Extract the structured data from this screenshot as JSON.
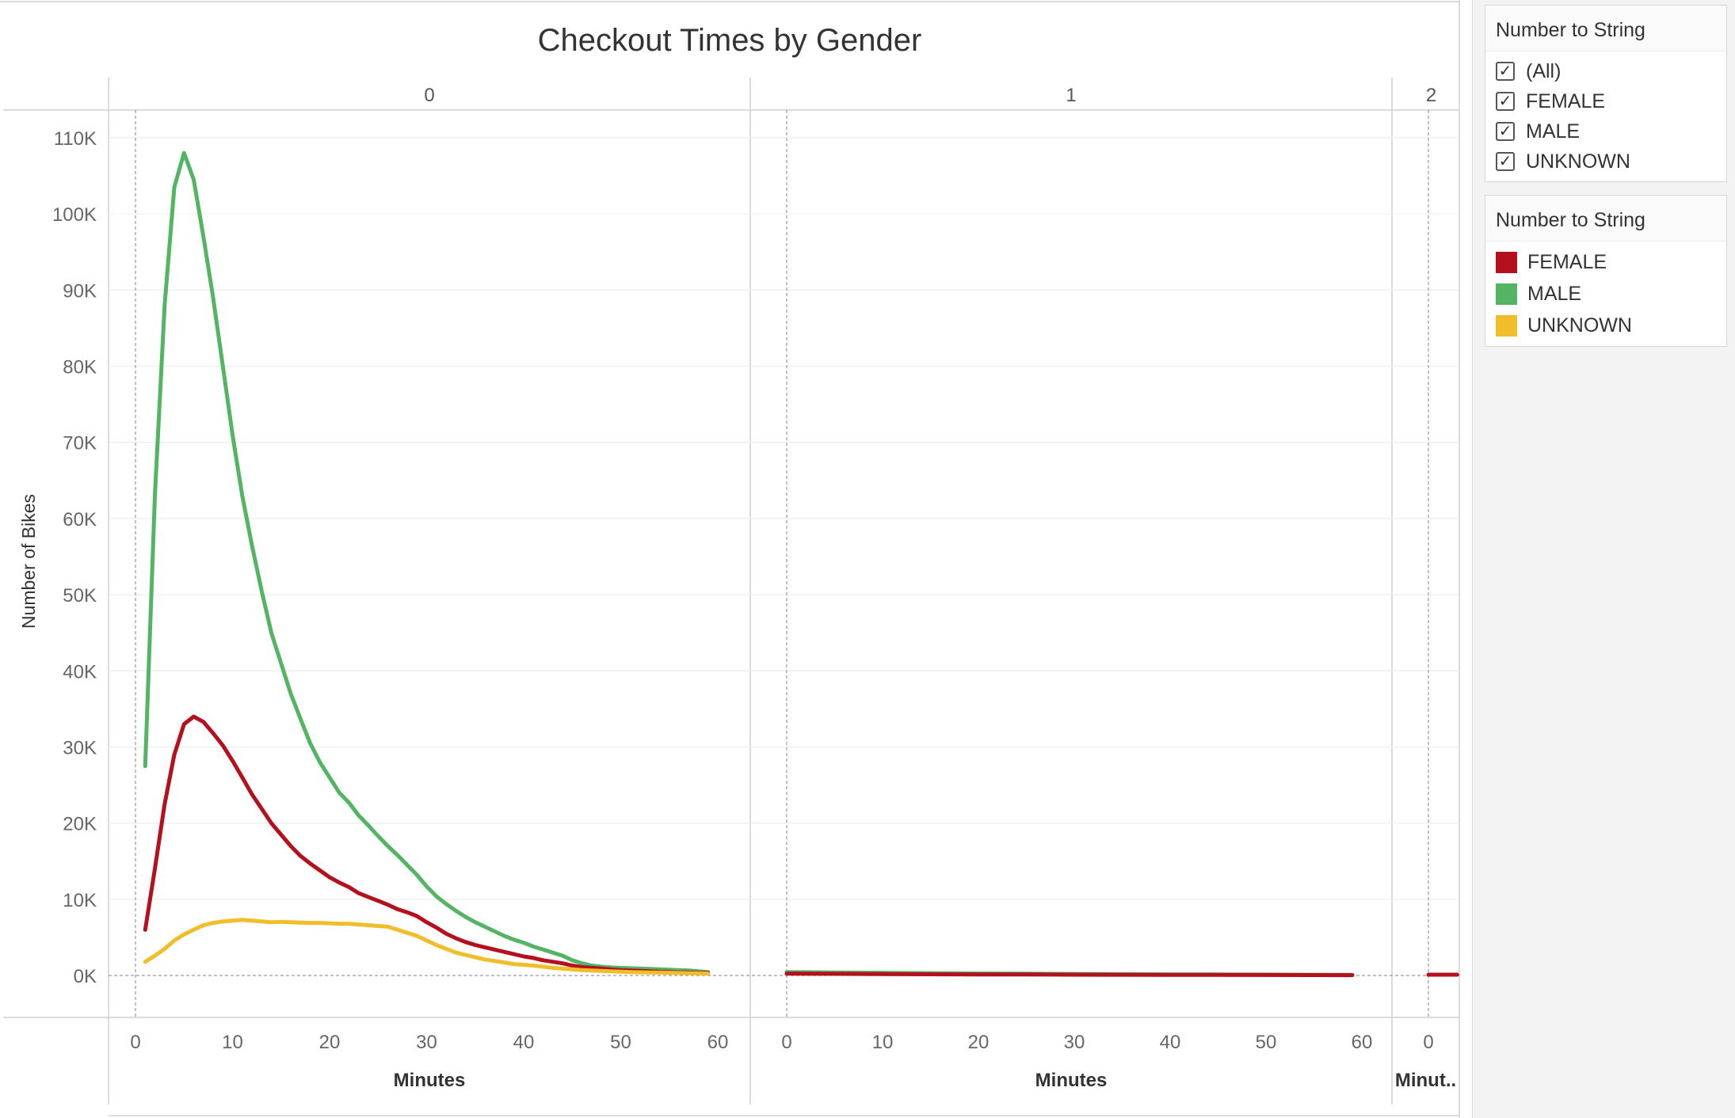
{
  "title": "Checkout Times by Gender",
  "chart_data": {
    "type": "line",
    "title": "Checkout Times by Gender",
    "ylabel": "Number of Bikes",
    "xlabel": "Minutes",
    "ylim": [
      0,
      110000
    ],
    "yticks": [
      "0K",
      "10K",
      "20K",
      "30K",
      "40K",
      "50K",
      "60K",
      "70K",
      "80K",
      "90K",
      "100K",
      "110K"
    ],
    "grid": true,
    "panels": [
      {
        "header": "0",
        "xlabel": "Minutes",
        "xticks": [
          "0",
          "10",
          "20",
          "30",
          "40",
          "50",
          "60"
        ],
        "x": [
          1,
          2,
          3,
          4,
          5,
          6,
          7,
          8,
          9,
          10,
          11,
          12,
          13,
          14,
          15,
          16,
          17,
          18,
          19,
          20,
          21,
          22,
          23,
          24,
          25,
          26,
          27,
          28,
          29,
          30,
          31,
          32,
          33,
          34,
          35,
          36,
          37,
          38,
          39,
          40,
          41,
          42,
          43,
          44,
          45,
          46,
          47,
          48,
          49,
          50,
          51,
          52,
          53,
          54,
          55,
          56,
          57,
          58,
          59
        ],
        "series": [
          {
            "name": "MALE",
            "values": [
              27500,
              63000,
              88000,
              103500,
              108000,
              104500,
              97000,
              89000,
              80000,
              71000,
              63000,
              56500,
              50500,
              45000,
              41000,
              37000,
              33700,
              30500,
              28000,
              26000,
              24000,
              22700,
              21000,
              19700,
              18300,
              17000,
              15800,
              14500,
              13200,
              11700,
              10400,
              9400,
              8500,
              7700,
              7000,
              6400,
              5800,
              5200,
              4700,
              4300,
              3800,
              3400,
              3000,
              2600,
              2000,
              1600,
              1300,
              1150,
              1050,
              1000,
              950,
              900,
              850,
              800,
              750,
              700,
              650,
              550,
              450
            ]
          },
          {
            "name": "FEMALE",
            "values": [
              6000,
              14000,
              22500,
              29000,
              33000,
              34000,
              33300,
              31800,
              30200,
              28200,
              26000,
              23800,
              21900,
              20000,
              18500,
              17000,
              15700,
              14700,
              13800,
              12900,
              12200,
              11600,
              10800,
              10300,
              9800,
              9300,
              8700,
              8300,
              7800,
              7000,
              6300,
              5500,
              4900,
              4400,
              4000,
              3700,
              3400,
              3100,
              2800,
              2500,
              2300,
              2000,
              1800,
              1600,
              1300,
              1100,
              1000,
              900,
              800,
              700,
              650,
              600,
              550,
              500,
              450,
              400,
              380,
              350,
              320
            ]
          },
          {
            "name": "UNKNOWN",
            "values": [
              1800,
              2600,
              3500,
              4600,
              5400,
              6000,
              6600,
              6900,
              7100,
              7200,
              7300,
              7200,
              7100,
              7000,
              7050,
              7000,
              6950,
              6900,
              6900,
              6850,
              6800,
              6800,
              6700,
              6600,
              6500,
              6400,
              6000,
              5600,
              5200,
              4600,
              4000,
              3500,
              3000,
              2700,
              2400,
              2100,
              1900,
              1700,
              1500,
              1400,
              1300,
              1150,
              1000,
              900,
              800,
              700,
              650,
              600,
              550,
              500,
              450,
              420,
              400,
              380,
              350,
              320,
              300,
              280,
              250
            ]
          }
        ]
      },
      {
        "header": "1",
        "xlabel": "Minutes",
        "xticks": [
          "0",
          "10",
          "20",
          "30",
          "40",
          "50",
          "60"
        ],
        "x": [
          0,
          5,
          10,
          15,
          20,
          25,
          30,
          35,
          40,
          45,
          50,
          55,
          59
        ],
        "series": [
          {
            "name": "MALE",
            "values": [
              450,
              400,
              350,
              300,
              260,
              230,
              200,
              170,
              150,
              130,
              110,
              90,
              80
            ]
          },
          {
            "name": "FEMALE",
            "values": [
              250,
              220,
              190,
              160,
              140,
              120,
              100,
              90,
              80,
              70,
              60,
              50,
              40
            ]
          }
        ]
      },
      {
        "header": "2",
        "xlabel": "Minut..",
        "xticks": [
          "0"
        ],
        "x": [
          0,
          3
        ],
        "series": [
          {
            "name": "FEMALE",
            "values": [
              100,
              100
            ]
          }
        ]
      }
    ]
  },
  "filter": {
    "title": "Number to String",
    "items": [
      {
        "label": "(All)",
        "checked": true
      },
      {
        "label": "FEMALE",
        "checked": true
      },
      {
        "label": "MALE",
        "checked": true
      },
      {
        "label": "UNKNOWN",
        "checked": true
      }
    ]
  },
  "legend": {
    "title": "Number to String",
    "items": [
      {
        "label": "FEMALE",
        "color": "#b5101e"
      },
      {
        "label": "MALE",
        "color": "#53b464"
      },
      {
        "label": "UNKNOWN",
        "color": "#f1bd2b"
      }
    ]
  }
}
